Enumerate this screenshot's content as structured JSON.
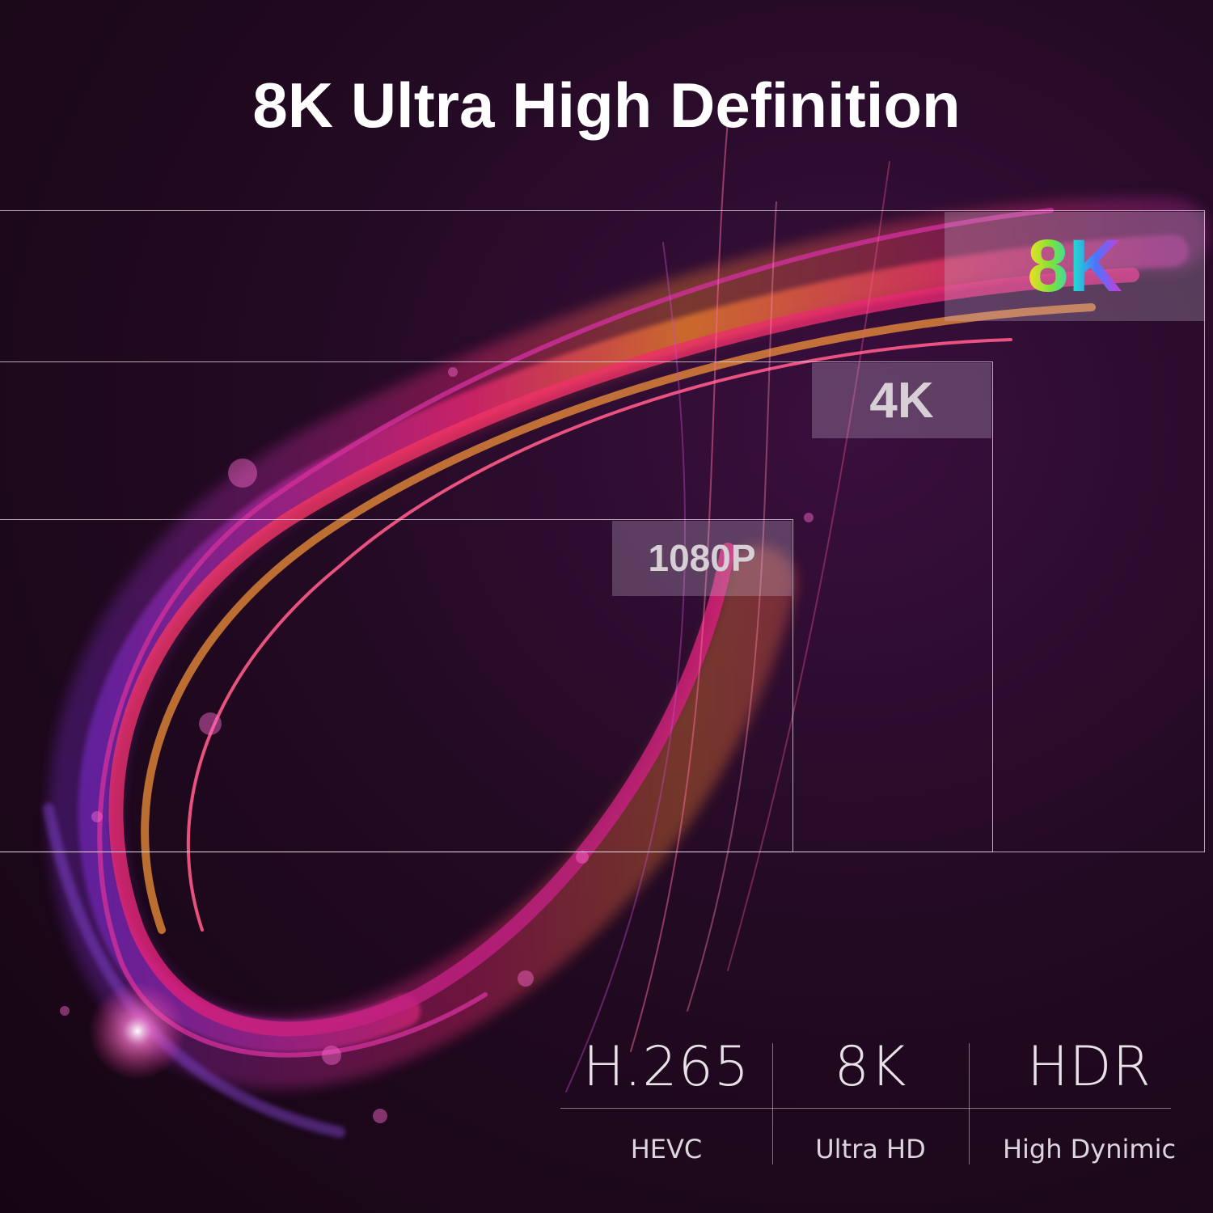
{
  "title": "8K Ultra High Definition",
  "resolutions": {
    "r8k": "8K",
    "r4k": "4K",
    "r1080": "1080P"
  },
  "specs": [
    {
      "main": "H.265",
      "sub": "HEVC"
    },
    {
      "main": "8K",
      "sub": "Ultra HD"
    },
    {
      "main": "HDR",
      "sub": "High Dynimic"
    }
  ],
  "colors": {
    "background": "#1a0716",
    "accent_pink": "#ff2a7a",
    "accent_orange": "#ff8a2a",
    "accent_violet": "#7a2cc8"
  }
}
